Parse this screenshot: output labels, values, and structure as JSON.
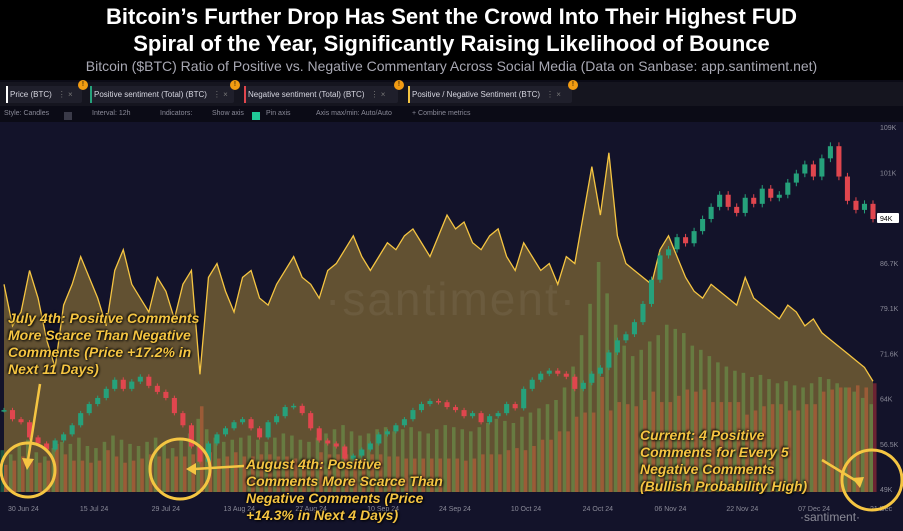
{
  "header": {
    "title_line1": "Bitcoin’s Further Drop Has Sent the Crowd Into Their Highest FUD",
    "title_line2": "Spiral of the Year, Significantly Raising Likelihood of Bounce",
    "subtitle": "Bitcoin ($BTC) Ratio of Positive vs. Negative Commentary Across Social Media (Data on Sanbase: app.santiment.net)"
  },
  "legend": [
    {
      "label": "Price (BTC)",
      "color": "#ffffff"
    },
    {
      "label": "Positive sentiment (Total) (BTC)",
      "color": "#26a17b"
    },
    {
      "label": "Negative sentiment (Total) (BTC)",
      "color": "#e0464e"
    },
    {
      "label": "Positive / Negative Sentiment (BTC)",
      "color": "#f5c542"
    }
  ],
  "toolbar": {
    "style": "Style: Candles",
    "interval": "Interval: 12h",
    "indicators": "Indicators:",
    "show_axis": "Show axis",
    "pin_axis": "Pin axis",
    "axis_minmax": "Axis max/min: Auto/Auto",
    "combine": "+ Combine metrics"
  },
  "watermark": "·santiment·",
  "watermark_small": "·santiment·",
  "annotations": {
    "july": "July 4th: Positive Comments\nMore Scarce Than Negative\nComments (Price +17.2% in\nNext 11 Days)",
    "august": "August 4th: Positive\nComments More Scarce Than\nNegative Comments (Price\n+14.3% in Next 4 Days)",
    "current": "Current: 4 Positive\nComments for Every 5\nNegative Comments\n(Bullish Probability High)"
  },
  "chart_data": {
    "type": "line",
    "x_ticks": [
      "30 Jun 24",
      "15 Jul 24",
      "29 Jul 24",
      "13 Aug 24",
      "27 Aug 24",
      "10 Sep 24",
      "24 Sep 24",
      "10 Oct 24",
      "24 Oct 24",
      "06 Nov 24",
      "22 Nov 24",
      "07 Dec 24",
      "21 Dec"
    ],
    "y_ticks": [
      "109K",
      "101K",
      "94.2K",
      "86.7K",
      "79.1K",
      "71.6K",
      "64K",
      "56.5K",
      "49K"
    ],
    "current_price_label": "94K",
    "ylim": [
      49000,
      109000
    ],
    "series": [
      {
        "name": "Price (BTC)",
        "values": [
          62500,
          61000,
          60500,
          58000,
          57000,
          56000,
          57500,
          58500,
          60000,
          62000,
          63500,
          64500,
          66000,
          67500,
          66000,
          67200,
          68000,
          66500,
          65500,
          64500,
          62000,
          60000,
          56500,
          54000,
          57000,
          58500,
          59500,
          60500,
          61000,
          59500,
          58000,
          60500,
          61500,
          63000,
          63200,
          62000,
          59500,
          57500,
          57000,
          56500,
          54500,
          55000,
          56000,
          57000,
          58500,
          59000,
          60000,
          61000,
          62500,
          63500,
          64000,
          63800,
          63000,
          62500,
          61500,
          62000,
          60500,
          61500,
          62000,
          63500,
          62800,
          66000,
          67500,
          68500,
          69000,
          68500,
          68000,
          66000,
          67000,
          68500,
          69500,
          72000,
          74000,
          75000,
          77000,
          80000,
          84000,
          88000,
          89000,
          91000,
          90000,
          92000,
          94000,
          96000,
          98000,
          96000,
          95000,
          97500,
          96500,
          99000,
          97500,
          98000,
          100000,
          101500,
          103000,
          101000,
          104000,
          106000,
          101000,
          97000,
          95500,
          96500,
          94000
        ]
      },
      {
        "name": "Positive / Negative Sentiment (BTC)",
        "values": [
          1.5,
          1.2,
          1.3,
          1.6,
          1.4,
          1.1,
          0.9,
          1.35,
          1.5,
          1.7,
          1.55,
          1.4,
          1.2,
          1.6,
          1.75,
          1.5,
          1.4,
          1.3,
          1.55,
          1.45,
          1.25,
          1.5,
          1.6,
          0.85,
          1.55,
          1.65,
          1.45,
          1.3,
          1.55,
          1.6,
          1.4,
          1.35,
          1.5,
          1.6,
          1.7,
          1.55,
          1.5,
          1.4,
          1.6,
          1.65,
          1.75,
          1.85,
          1.7,
          1.6,
          1.7,
          1.8,
          1.75,
          1.85,
          1.9,
          1.8,
          1.7,
          1.85,
          2.0,
          1.9,
          1.95,
          1.8,
          1.75,
          1.85,
          1.9,
          1.7,
          1.6,
          1.8,
          1.7,
          1.6,
          1.65,
          1.5,
          1.7,
          1.65,
          2.0,
          2.35,
          2.0,
          2.45,
          1.85,
          1.65,
          1.6,
          1.55,
          1.5,
          1.75,
          1.85,
          1.7,
          1.55,
          1.45,
          1.4,
          1.5,
          1.45,
          1.4,
          1.35,
          1.55,
          1.4,
          1.35,
          1.3,
          1.25,
          1.35,
          1.3,
          1.2,
          1.25,
          1.15,
          1.1,
          1.05,
          1.0,
          0.95,
          0.9,
          0.8
        ]
      },
      {
        "name": "Positive sentiment (Total) (BTC)",
        "values": [
          20,
          18,
          22,
          25,
          19,
          17,
          21,
          24,
          23,
          26,
          22,
          21,
          24,
          27,
          25,
          23,
          22,
          24,
          26,
          23,
          21,
          25,
          28,
          35,
          30,
          26,
          24,
          25,
          26,
          27,
          25,
          24,
          26,
          28,
          27,
          25,
          24,
          26,
          28,
          30,
          32,
          29,
          27,
          28,
          30,
          31,
          29,
          30,
          31,
          29,
          28,
          30,
          32,
          31,
          30,
          29,
          31,
          33,
          35,
          34,
          33,
          36,
          38,
          40,
          42,
          44,
          50,
          60,
          75,
          90,
          110,
          95,
          80,
          70,
          65,
          68,
          72,
          75,
          80,
          78,
          76,
          70,
          68,
          65,
          62,
          60,
          58,
          57,
          55,
          56,
          54,
          52,
          53,
          51,
          50,
          52,
          55,
          54,
          52,
          50,
          48,
          45,
          42
        ]
      },
      {
        "name": "Negative sentiment (Total) (BTC)",
        "values": [
          13,
          15,
          17,
          16,
          14,
          15,
          23,
          18,
          15,
          15,
          14,
          15,
          20,
          17,
          14,
          15,
          16,
          18,
          17,
          16,
          17,
          17,
          18,
          41,
          19,
          16,
          17,
          19,
          17,
          17,
          18,
          18,
          17,
          17,
          16,
          16,
          16,
          19,
          18,
          18,
          18,
          16,
          16,
          18,
          18,
          17,
          17,
          16,
          16,
          16,
          16,
          16,
          16,
          16,
          15,
          16,
          18,
          18,
          18,
          20,
          21,
          20,
          22,
          25,
          25,
          29,
          29,
          36,
          38,
          38,
          55,
          39,
          43,
          42,
          41,
          44,
          48,
          43,
          43,
          46,
          49,
          48,
          49,
          43,
          43,
          43,
          43,
          37,
          39,
          41,
          42,
          42,
          39,
          39,
          42,
          42,
          48,
          49,
          50,
          50,
          51,
          50,
          52
        ]
      }
    ]
  }
}
